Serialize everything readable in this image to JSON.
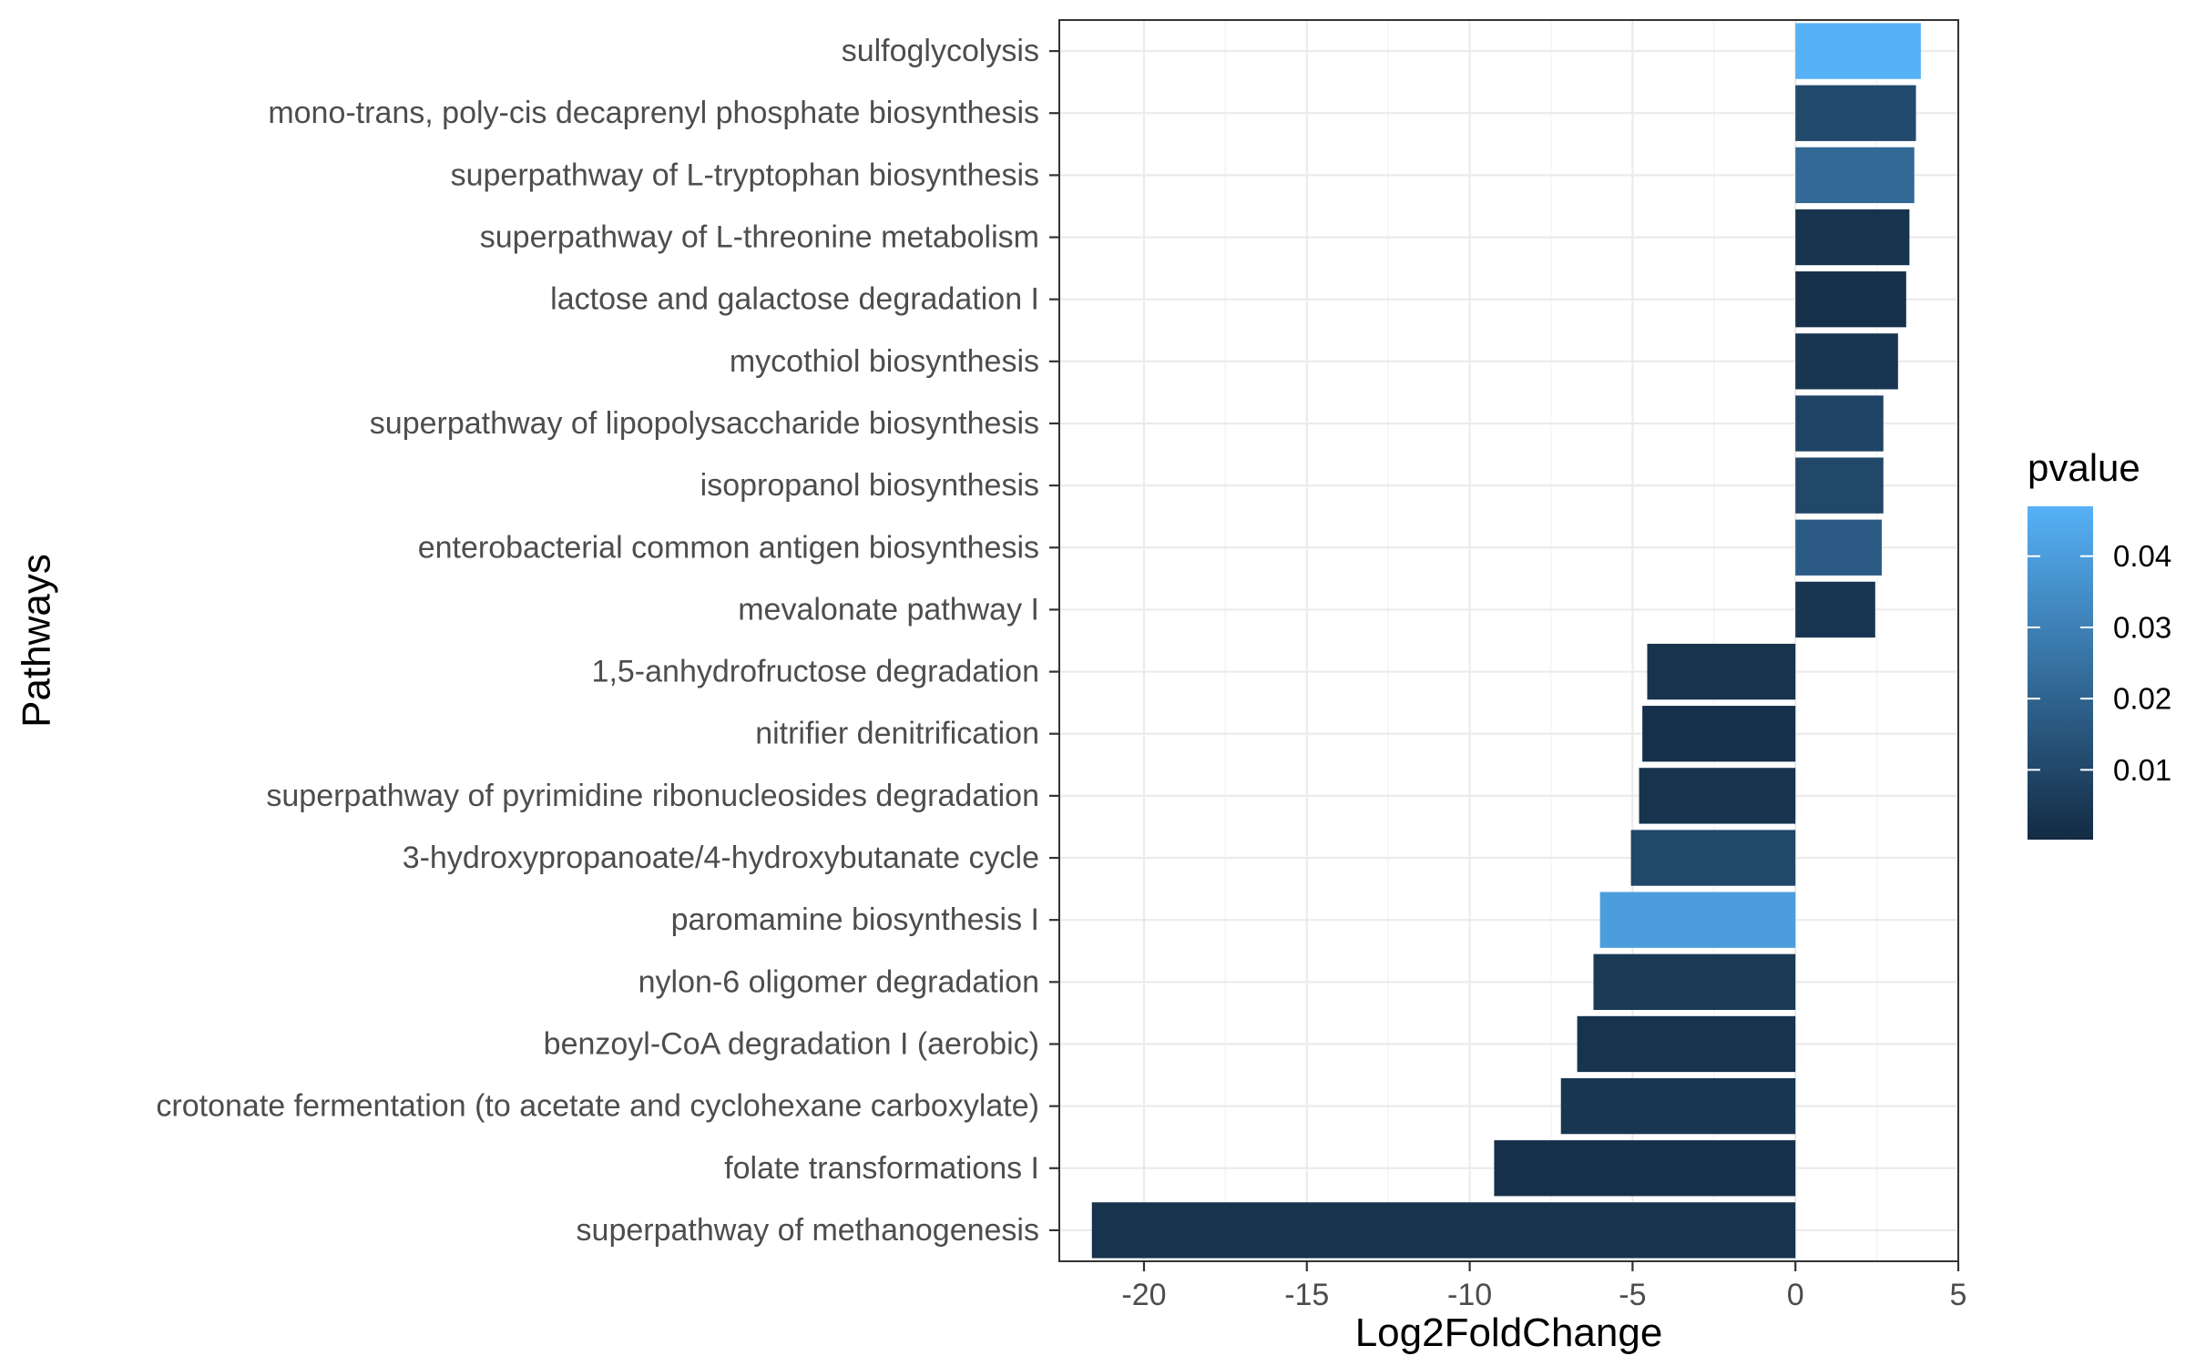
{
  "chart_data": {
    "type": "bar",
    "orientation": "horizontal",
    "xlabel": "Log2FoldChange",
    "ylabel": "Pathways",
    "xlim": [
      -22.6,
      5.0
    ],
    "xticks": [
      -20,
      -15,
      -10,
      -5,
      0,
      5
    ],
    "grid": true,
    "legend": {
      "title": "pvalue",
      "position": "right",
      "type": "colorbar",
      "range": [
        0.0002,
        0.047
      ],
      "ticks": [
        0.01,
        0.02,
        0.03,
        0.04
      ],
      "tick_labels": [
        "0.01",
        "0.02",
        "0.03",
        "0.04"
      ],
      "color_low": "#132b43",
      "color_high": "#56b1f7"
    },
    "categories": [
      "sulfoglycolysis",
      "mono-trans, poly-cis decaprenyl phosphate biosynthesis",
      "superpathway of L-tryptophan biosynthesis",
      "superpathway of L-threonine metabolism",
      "lactose and galactose degradation I",
      "mycothiol biosynthesis",
      "superpathway of lipopolysaccharide biosynthesis",
      "isopropanol biosynthesis",
      "enterobacterial common antigen biosynthesis",
      "mevalonate pathway I",
      "1,5-anhydrofructose degradation",
      "nitrifier denitrification",
      "superpathway of pyrimidine ribonucleosides degradation",
      "3-hydroxypropanoate/4-hydroxybutanate cycle",
      "paromamine biosynthesis I",
      "nylon-6 oligomer degradation",
      "benzoyl-CoA degradation I (aerobic)",
      "crotonate fermentation (to acetate and cyclohexane carboxylate)",
      "folate transformations I",
      "superpathway of methanogenesis"
    ],
    "values": [
      3.85,
      3.7,
      3.65,
      3.5,
      3.4,
      3.15,
      2.7,
      2.7,
      2.65,
      2.45,
      -4.55,
      -4.7,
      -4.8,
      -5.05,
      -6.0,
      -6.2,
      -6.7,
      -7.2,
      -9.25,
      -21.6
    ],
    "pvalues": [
      0.047,
      0.011,
      0.022,
      0.003,
      0.002,
      0.004,
      0.009,
      0.01,
      0.017,
      0.004,
      0.003,
      0.002,
      0.003,
      0.01,
      0.04,
      0.005,
      0.003,
      0.004,
      0.002,
      0.003
    ]
  }
}
